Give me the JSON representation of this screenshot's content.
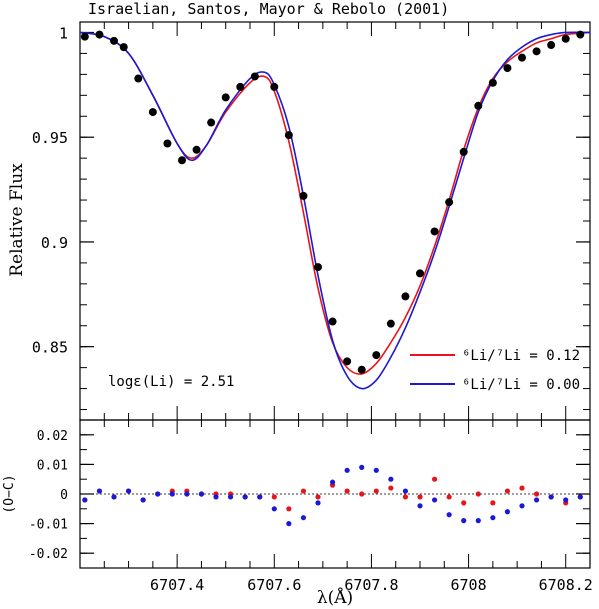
{
  "chart_data": [
    {
      "type": "line",
      "role": "spectrum",
      "title": "Israelian, Santos, Mayor & Rebolo (2001)",
      "ylabel": "Relative Flux",
      "annotation": "logε(Li) = 2.51",
      "xlim": [
        6707.2,
        6708.25
      ],
      "ylim": [
        0.815,
        1.005
      ],
      "yticks": [
        0.85,
        0.9,
        0.95,
        1
      ],
      "ytick_labels": [
        "0.85",
        "0.9",
        "0.95",
        "1"
      ],
      "legend": [
        {
          "label": "⁶Li/⁷Li = 0.12",
          "color": "#e8141c"
        },
        {
          "label": "⁶Li/⁷Li = 0.00",
          "color": "#1a1ad6"
        }
      ],
      "observed": {
        "color": "#000000",
        "x": [
          6707.21,
          6707.24,
          6707.27,
          6707.29,
          6707.32,
          6707.35,
          6707.38,
          6707.41,
          6707.44,
          6707.47,
          6707.5,
          6707.53,
          6707.56,
          6707.6,
          6707.63,
          6707.66,
          6707.69,
          6707.72,
          6707.75,
          6707.78,
          6707.81,
          6707.84,
          6707.87,
          6707.9,
          6707.93,
          6707.96,
          6707.99,
          6708.02,
          6708.05,
          6708.08,
          6708.11,
          6708.14,
          6708.17,
          6708.2,
          6708.23
        ],
        "y": [
          0.998,
          0.999,
          0.996,
          0.993,
          0.978,
          0.962,
          0.947,
          0.939,
          0.944,
          0.957,
          0.969,
          0.974,
          0.979,
          0.974,
          0.951,
          0.922,
          0.888,
          0.862,
          0.843,
          0.839,
          0.846,
          0.861,
          0.874,
          0.885,
          0.905,
          0.919,
          0.943,
          0.965,
          0.976,
          0.983,
          0.988,
          0.991,
          0.994,
          0.997,
          0.999
        ]
      },
      "model_li6_012": {
        "color": "#e8141c",
        "x": [
          6707.2,
          6707.25,
          6707.3,
          6707.35,
          6707.4,
          6707.43,
          6707.46,
          6707.5,
          6707.55,
          6707.58,
          6707.6,
          6707.63,
          6707.66,
          6707.69,
          6707.72,
          6707.75,
          6707.78,
          6707.81,
          6707.84,
          6707.87,
          6707.9,
          6707.93,
          6707.96,
          6707.99,
          6708.02,
          6708.05,
          6708.08,
          6708.11,
          6708.14,
          6708.17,
          6708.2,
          6708.25
        ],
        "y": [
          1.0,
          0.998,
          0.99,
          0.97,
          0.947,
          0.94,
          0.946,
          0.962,
          0.976,
          0.979,
          0.972,
          0.948,
          0.914,
          0.878,
          0.852,
          0.84,
          0.837,
          0.842,
          0.852,
          0.864,
          0.879,
          0.898,
          0.92,
          0.944,
          0.964,
          0.978,
          0.986,
          0.991,
          0.995,
          0.997,
          0.999,
          1.0
        ]
      },
      "model_li6_000": {
        "color": "#1a1ad6",
        "x": [
          6707.2,
          6707.25,
          6707.3,
          6707.35,
          6707.4,
          6707.43,
          6707.46,
          6707.5,
          6707.55,
          6707.58,
          6707.6,
          6707.63,
          6707.66,
          6707.69,
          6707.72,
          6707.75,
          6707.78,
          6707.81,
          6707.84,
          6707.87,
          6707.9,
          6707.93,
          6707.96,
          6707.99,
          6708.02,
          6708.05,
          6708.08,
          6708.11,
          6708.14,
          6708.17,
          6708.2,
          6708.25
        ],
        "y": [
          1.0,
          0.998,
          0.99,
          0.97,
          0.947,
          0.939,
          0.946,
          0.963,
          0.978,
          0.981,
          0.975,
          0.955,
          0.922,
          0.884,
          0.853,
          0.836,
          0.83,
          0.834,
          0.845,
          0.859,
          0.876,
          0.895,
          0.917,
          0.94,
          0.962,
          0.977,
          0.987,
          0.993,
          0.997,
          0.999,
          1.0,
          1.0
        ]
      }
    },
    {
      "type": "scatter",
      "role": "residuals",
      "ylabel": "(O−C)",
      "xlabel": "λ(Å)",
      "xlim": [
        6707.2,
        6708.25
      ],
      "ylim": [
        -0.025,
        0.025
      ],
      "yticks": [
        -0.02,
        -0.01,
        0,
        0.01,
        0.02
      ],
      "ytick_labels": [
        "-0.02",
        "-0.01",
        "0",
        "0.01",
        "0.02"
      ],
      "xticks": [
        6707.4,
        6707.6,
        6707.8,
        6708,
        6708.2
      ],
      "xtick_labels": [
        "6707.4",
        "6707.6",
        "6707.8",
        "6708",
        "6708.2"
      ],
      "series": [
        {
          "color": "#e8141c",
          "x": [
            6707.21,
            6707.24,
            6707.27,
            6707.3,
            6707.33,
            6707.36,
            6707.39,
            6707.42,
            6707.45,
            6707.48,
            6707.51,
            6707.54,
            6707.57,
            6707.6,
            6707.63,
            6707.66,
            6707.69,
            6707.72,
            6707.75,
            6707.78,
            6707.81,
            6707.84,
            6707.87,
            6707.9,
            6707.93,
            6707.96,
            6707.99,
            6708.02,
            6708.05,
            6708.08,
            6708.11,
            6708.14,
            6708.17,
            6708.2,
            6708.23
          ],
          "y": [
            -0.002,
            0.001,
            -0.001,
            0.001,
            -0.002,
            0.0,
            0.001,
            0.001,
            0.0,
            0.0,
            0.0,
            -0.001,
            -0.001,
            -0.001,
            -0.005,
            0.001,
            -0.001,
            0.003,
            0.001,
            0.0,
            0.001,
            0.002,
            -0.001,
            -0.001,
            0.005,
            -0.001,
            -0.003,
            0.0,
            -0.003,
            0.001,
            0.002,
            0.0,
            -0.001,
            -0.003,
            -0.001
          ]
        },
        {
          "color": "#1a1ad6",
          "x": [
            6707.21,
            6707.24,
            6707.27,
            6707.3,
            6707.33,
            6707.36,
            6707.39,
            6707.42,
            6707.45,
            6707.48,
            6707.51,
            6707.54,
            6707.57,
            6707.6,
            6707.63,
            6707.66,
            6707.69,
            6707.72,
            6707.75,
            6707.78,
            6707.81,
            6707.84,
            6707.87,
            6707.9,
            6707.93,
            6707.96,
            6707.99,
            6708.02,
            6708.05,
            6708.08,
            6708.11,
            6708.14,
            6708.17,
            6708.2,
            6708.23
          ],
          "y": [
            -0.002,
            0.001,
            -0.001,
            0.001,
            -0.002,
            0.0,
            0.0,
            0.0,
            0.0,
            -0.001,
            -0.001,
            -0.001,
            -0.001,
            -0.005,
            -0.01,
            -0.008,
            -0.003,
            0.004,
            0.008,
            0.009,
            0.008,
            0.005,
            0.001,
            -0.004,
            -0.002,
            -0.007,
            -0.009,
            -0.009,
            -0.008,
            -0.006,
            -0.004,
            -0.002,
            -0.001,
            -0.002,
            -0.001
          ]
        }
      ]
    }
  ]
}
